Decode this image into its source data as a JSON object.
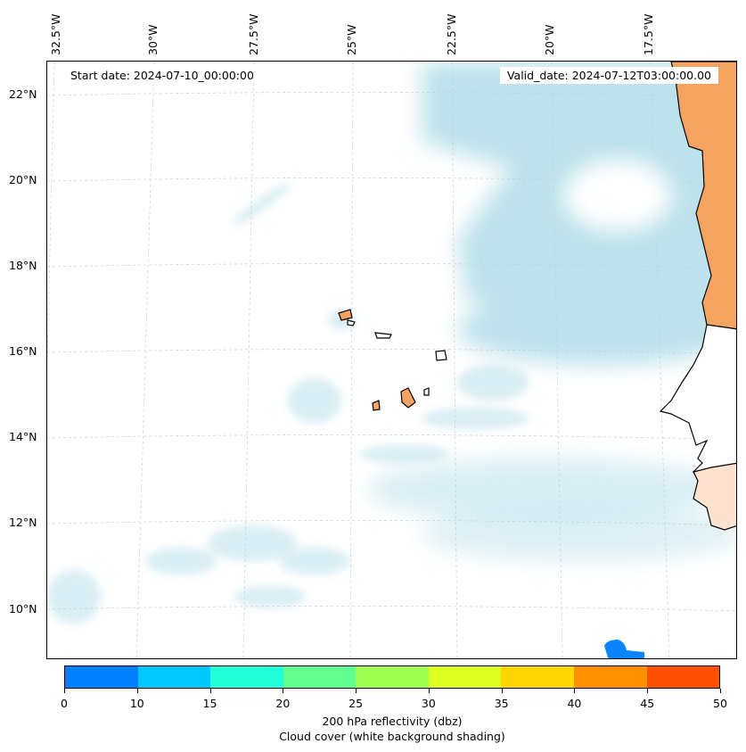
{
  "header": {
    "start_date": "Start date: 2024-07-10_00:00:00",
    "valid_date": "Valid_date: 2024-07-12T03:00:00.00"
  },
  "axes": {
    "longitude_labels": [
      "32.5°W",
      "30°W",
      "27.5°W",
      "25°W",
      "22.5°W",
      "20°W",
      "17.5°W"
    ],
    "latitude_labels": [
      "22°N",
      "20°N",
      "18°N",
      "16°N",
      "14°N",
      "12°N",
      "10°N"
    ]
  },
  "colorbar": {
    "tick_labels": [
      "0",
      "10",
      "15",
      "20",
      "25",
      "30",
      "35",
      "40",
      "45",
      "50"
    ],
    "colors": [
      "#0080ff",
      "#00c8ff",
      "#20ffd8",
      "#60ff90",
      "#a0ff50",
      "#dcff20",
      "#ffd700",
      "#ff9000",
      "#ff5000"
    ],
    "label_line1": "200 hPa reflectivity (dbz)",
    "label_line2": "Cloud cover (white background shading)"
  },
  "colors": {
    "land": "#f4a460",
    "cloud": "#a8d8e6"
  }
}
